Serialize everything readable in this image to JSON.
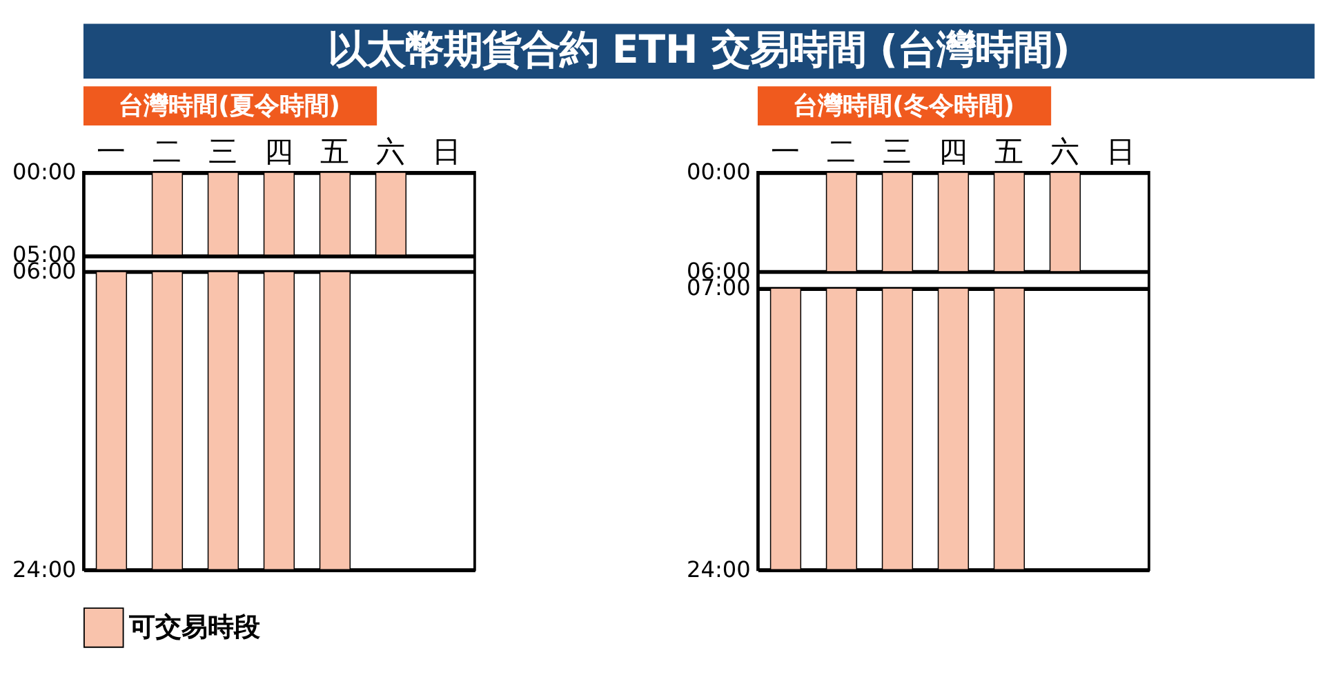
{
  "chart_data": [
    {
      "type": "bar",
      "title": "以太幣期貨合約 ETH 交易時間 (台灣時間)",
      "subtitle": "台灣時間(夏令時間)",
      "categories": [
        "一",
        "二",
        "三",
        "四",
        "五",
        "六",
        "日"
      ],
      "series": [
        {
          "name": "可交易時段",
          "color": "#f9c3ac",
          "values": [
            null,
            5,
            5,
            5,
            5,
            5,
            null
          ],
          "base": [
            null,
            0,
            0,
            0,
            0,
            0,
            null
          ]
        },
        {
          "color": "#f9c3ac",
          "values": [
            18,
            18,
            18,
            18,
            18,
            null,
            null
          ],
          "base": [
            6,
            6,
            6,
            6,
            6,
            null,
            null
          ]
        }
      ],
      "ylim": [
        24,
        0
      ],
      "yticks": [
        {
          "value": 0,
          "label": "00:00"
        },
        {
          "value": 5,
          "label": "05:00"
        },
        {
          "value": 6,
          "label": "06:00"
        },
        {
          "value": 24,
          "label": "24:00"
        }
      ],
      "grid": "y",
      "legend": "bottom"
    },
    {
      "type": "bar",
      "subtitle": "台灣時間(冬令時間)",
      "categories": [
        "一",
        "二",
        "三",
        "四",
        "五",
        "六",
        "日"
      ],
      "series": [
        {
          "color": "#f9c3ac",
          "values": [
            null,
            6,
            6,
            6,
            6,
            6,
            null
          ],
          "base": [
            null,
            0,
            0,
            0,
            0,
            0,
            null
          ]
        },
        {
          "color": "#f9c3ac",
          "values": [
            17,
            17,
            17,
            17,
            17,
            null,
            null
          ],
          "base": [
            7,
            7,
            7,
            7,
            7,
            null,
            null
          ]
        }
      ],
      "ylim": [
        24,
        0
      ],
      "yticks": [
        {
          "value": 0,
          "label": "00:00"
        },
        {
          "value": 6,
          "label": "06:00"
        },
        {
          "value": 7,
          "label": "07:00"
        },
        {
          "value": 24,
          "label": "24:00"
        }
      ],
      "grid": "y"
    }
  ]
}
